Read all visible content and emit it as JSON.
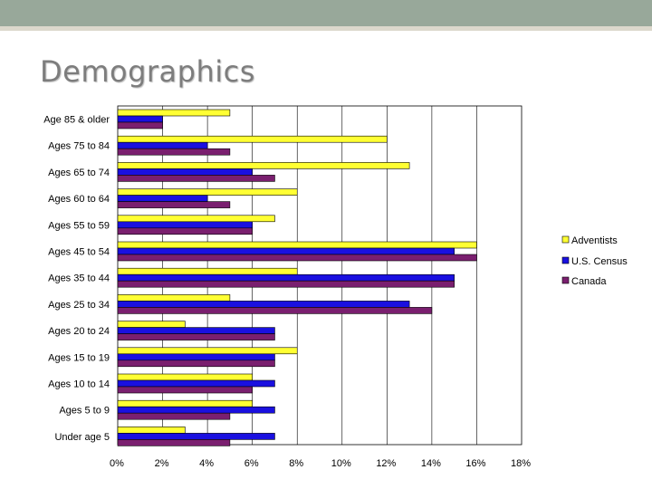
{
  "slide": {
    "title": "Demographics",
    "colors": {
      "top_bar": "#98a89a",
      "top_line": "#dcd8cc",
      "title_text": "#7d7d7d"
    }
  },
  "chart_data": {
    "type": "bar",
    "orientation": "horizontal",
    "categories": [
      "Age 85 & older",
      "Ages 75 to 84",
      "Ages 65 to 74",
      "Ages 60 to 64",
      "Ages 55 to 59",
      "Ages 45 to 54",
      "Ages 35 to 44",
      "Ages 25 to 34",
      "Ages 20 to 24",
      "Ages 15 to 19",
      "Ages 10 to 14",
      "Ages 5 to 9",
      "Under age 5"
    ],
    "series": [
      {
        "name": "Adventists",
        "color": "#ffff33",
        "values": [
          5,
          12,
          13,
          8,
          7,
          16,
          8,
          5,
          3,
          8,
          6,
          6,
          3
        ]
      },
      {
        "name": "U.S. Census",
        "color": "#1a10e0",
        "values": [
          2,
          4,
          6,
          4,
          6,
          15,
          15,
          13,
          7,
          7,
          7,
          7,
          7
        ]
      },
      {
        "name": "Canada",
        "color": "#7a1f6f",
        "values": [
          2,
          5,
          7,
          5,
          6,
          16,
          15,
          14,
          7,
          7,
          6,
          5,
          5
        ]
      }
    ],
    "xlim": [
      0,
      18
    ],
    "xticks": [
      "0%",
      "2%",
      "4%",
      "6%",
      "8%",
      "10%",
      "12%",
      "14%",
      "16%",
      "18%"
    ],
    "grid": "vertical",
    "legend": "right"
  }
}
